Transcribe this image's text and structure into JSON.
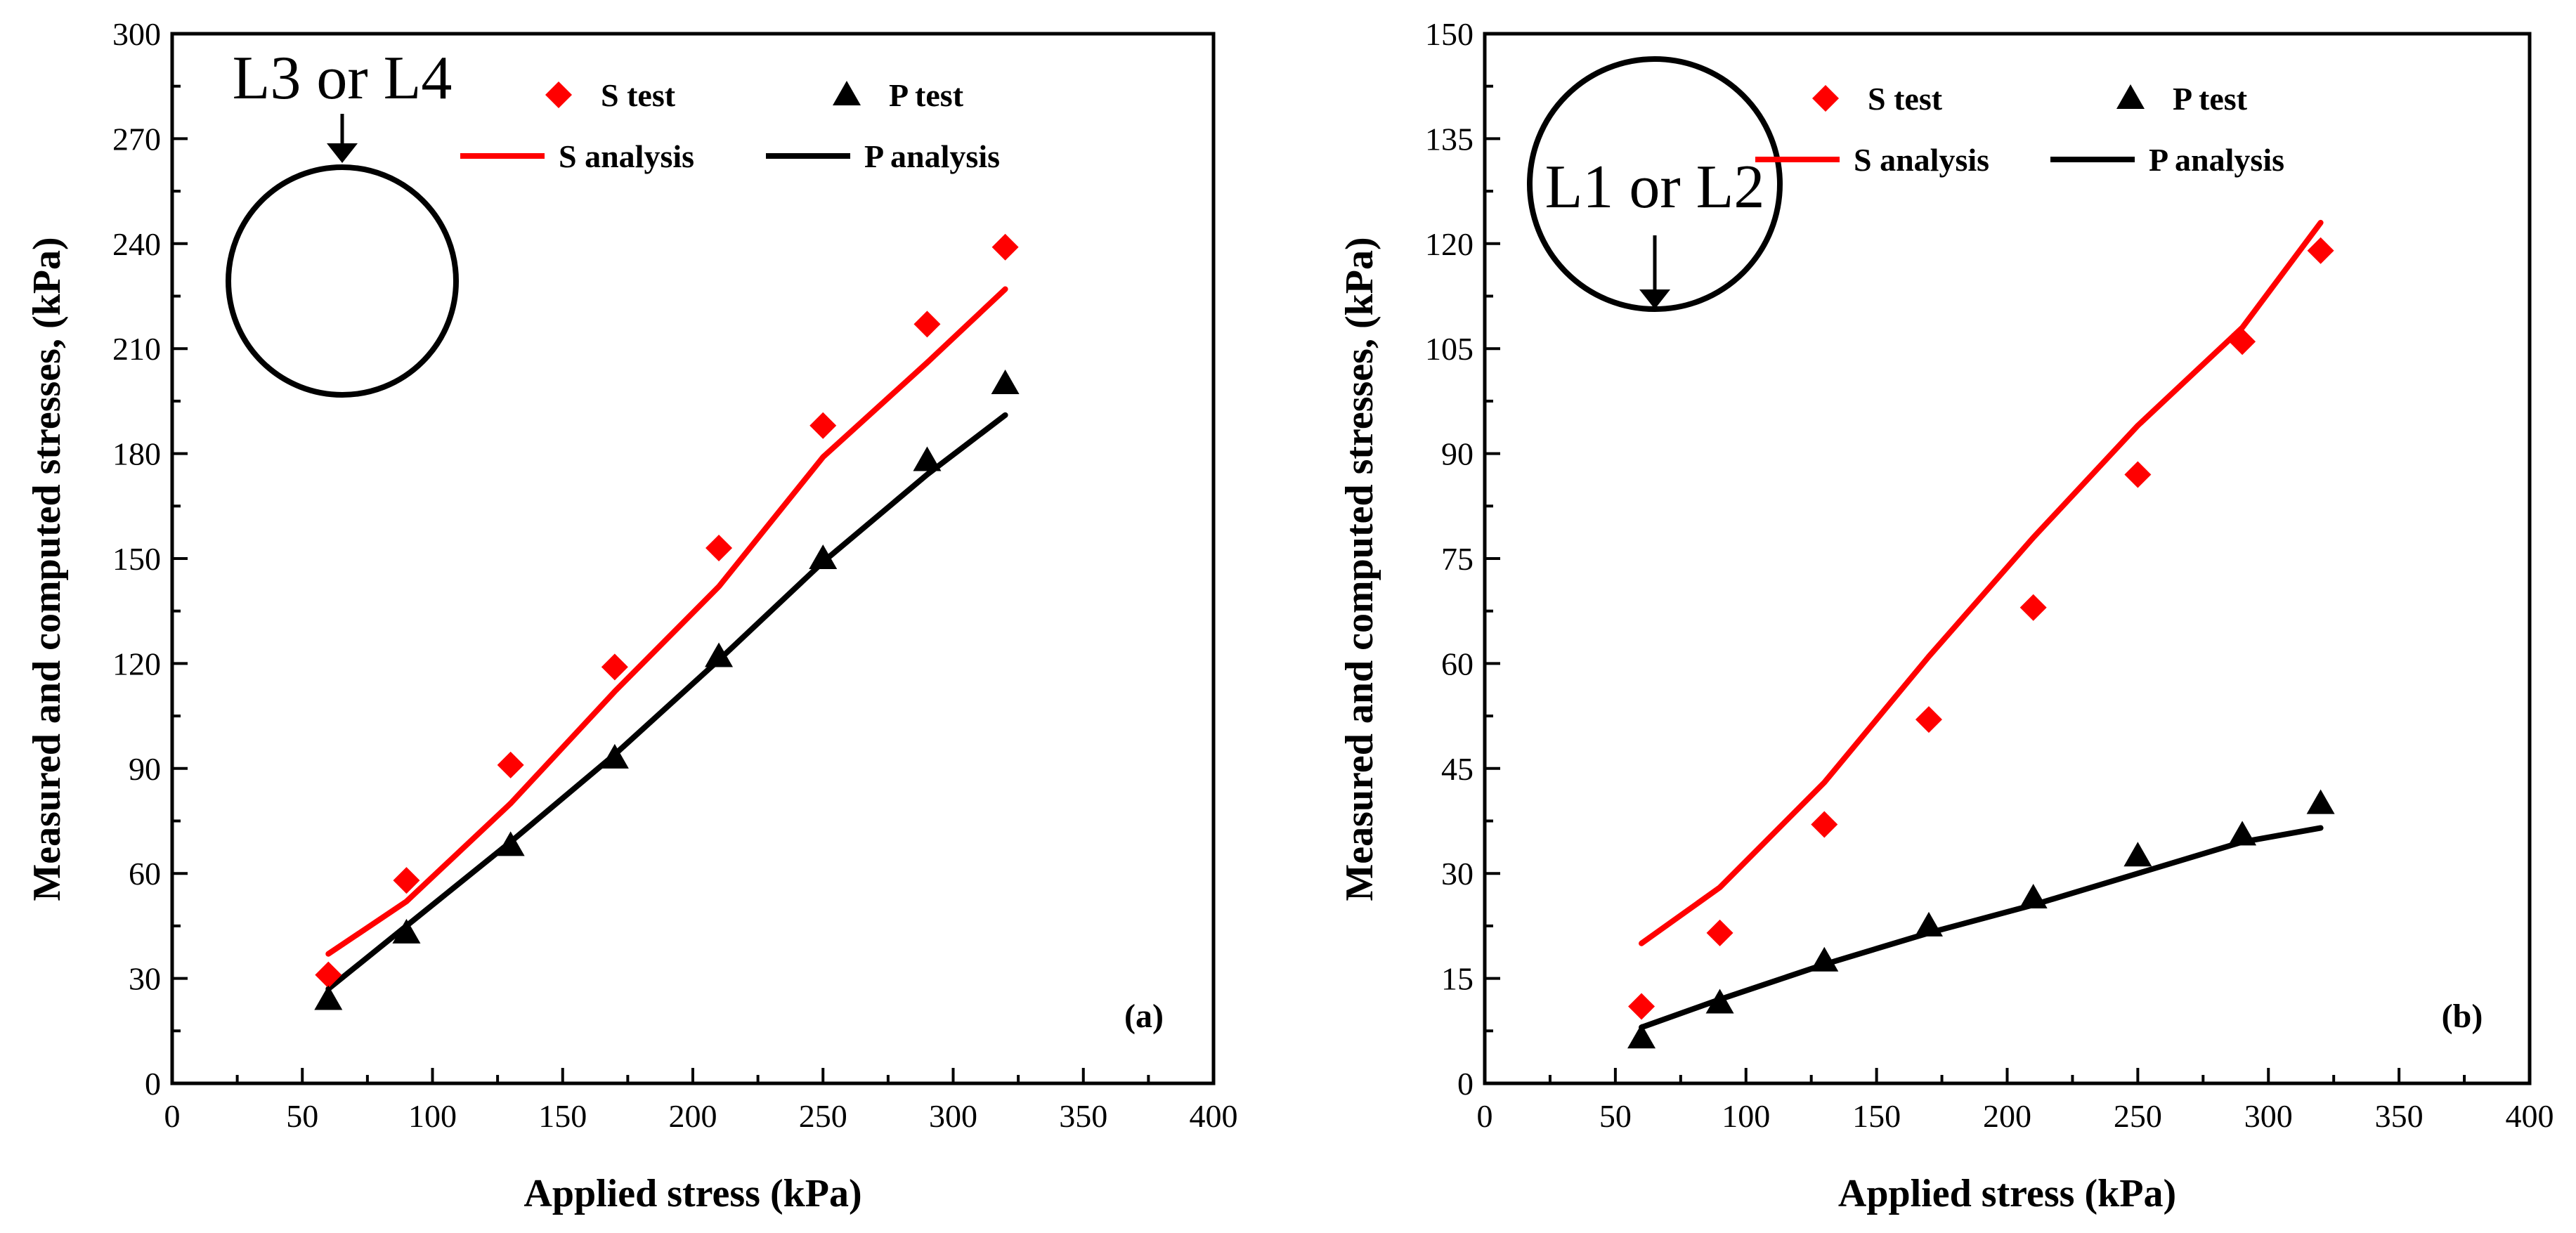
{
  "colors": {
    "s": "#ff0000",
    "p": "#000000"
  },
  "chart_data": [
    {
      "type": "line",
      "panel_label": "(a)",
      "xlabel": "Applied stress (kPa)",
      "ylabel": "Measured and computed stresses, (kPa)",
      "xlim": [
        0,
        400
      ],
      "ylim": [
        0,
        300
      ],
      "xticks": [
        0,
        50,
        100,
        150,
        200,
        250,
        300,
        350,
        400
      ],
      "yticks": [
        0,
        30,
        60,
        90,
        120,
        150,
        180,
        210,
        240,
        270,
        300
      ],
      "inset_label": "L3 or L4",
      "inset_arrow": "top",
      "legend_position": "top",
      "series": [
        {
          "name": "S test",
          "kind": "scatter",
          "marker": "diamond",
          "color": "#ff0000",
          "x": [
            60,
            90,
            130,
            170,
            210,
            250,
            290,
            320
          ],
          "y": [
            31,
            58,
            91,
            119,
            153,
            188,
            217,
            239
          ]
        },
        {
          "name": "P test",
          "kind": "scatter",
          "marker": "triangle",
          "color": "#000000",
          "x": [
            60,
            90,
            130,
            170,
            210,
            250,
            290,
            320
          ],
          "y": [
            24,
            43,
            68,
            93,
            122,
            150,
            178,
            200
          ]
        },
        {
          "name": "S analysis",
          "kind": "line",
          "color": "#ff0000",
          "x": [
            60,
            90,
            130,
            170,
            210,
            250,
            290,
            320
          ],
          "y": [
            37,
            52,
            80,
            112,
            142,
            179,
            206,
            227
          ]
        },
        {
          "name": "P analysis",
          "kind": "line",
          "color": "#000000",
          "x": [
            60,
            90,
            130,
            170,
            210,
            250,
            290,
            320
          ],
          "y": [
            27,
            45,
            69,
            94,
            121,
            149,
            174,
            191
          ]
        }
      ]
    },
    {
      "type": "line",
      "panel_label": "(b)",
      "xlabel": "Applied stress (kPa)",
      "ylabel": "Measured and computed stresses, (kPa)",
      "xlim": [
        0,
        400
      ],
      "ylim": [
        0,
        150
      ],
      "xticks": [
        0,
        50,
        100,
        150,
        200,
        250,
        300,
        350,
        400
      ],
      "yticks": [
        0,
        15,
        30,
        45,
        60,
        75,
        90,
        105,
        120,
        135,
        150
      ],
      "inset_label": "L1 or L2",
      "inset_arrow": "bottom",
      "legend_position": "top",
      "series": [
        {
          "name": "S test",
          "kind": "scatter",
          "marker": "diamond",
          "color": "#ff0000",
          "x": [
            60,
            90,
            130,
            170,
            210,
            250,
            290,
            320
          ],
          "y": [
            11,
            21.5,
            37,
            52,
            68,
            87,
            106,
            119
          ]
        },
        {
          "name": "P test",
          "kind": "scatter",
          "marker": "triangle",
          "color": "#000000",
          "x": [
            60,
            90,
            130,
            170,
            210,
            250,
            290,
            320
          ],
          "y": [
            6.5,
            11.5,
            17.5,
            22.5,
            26.5,
            32.5,
            35.5,
            40
          ]
        },
        {
          "name": "S analysis",
          "kind": "line",
          "color": "#ff0000",
          "x": [
            60,
            90,
            130,
            170,
            210,
            250,
            290,
            320
          ],
          "y": [
            20,
            28,
            43,
            61,
            78,
            94,
            108,
            123
          ]
        },
        {
          "name": "P analysis",
          "kind": "line",
          "color": "#000000",
          "x": [
            60,
            90,
            130,
            170,
            210,
            250,
            290,
            320
          ],
          "y": [
            8,
            12,
            17,
            21.5,
            25.5,
            30,
            34.5,
            36.5
          ]
        }
      ]
    }
  ]
}
